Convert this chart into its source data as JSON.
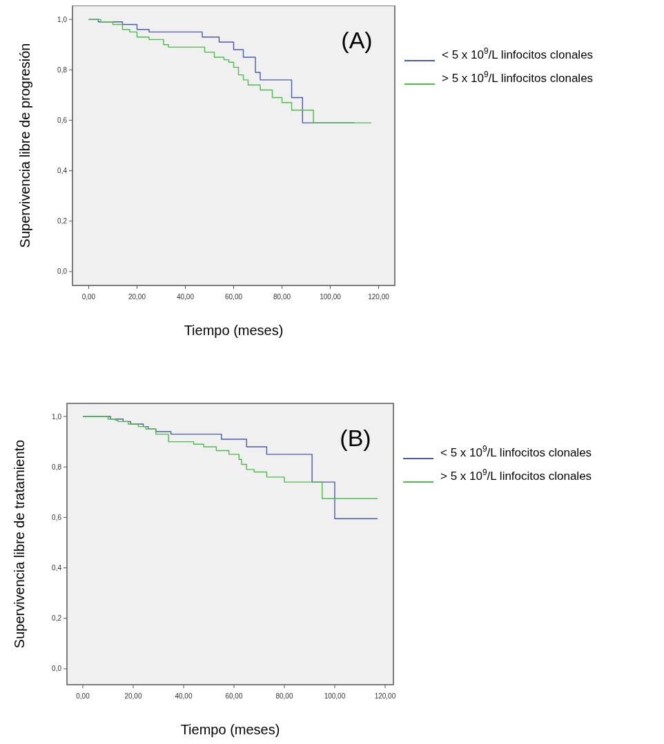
{
  "chart_data": [
    {
      "type": "step",
      "title": "(A)",
      "xlabel": "Tiempo (meses)",
      "ylabel": "Supervivencia libre de progresión",
      "legend": "right",
      "grid": false,
      "xlim": [
        -6.7,
        126.7
      ],
      "ylim": [
        -0.055,
        1.055
      ],
      "xticks": [
        {
          "value": 0,
          "label": "0,00"
        },
        {
          "value": 20,
          "label": "20,00"
        },
        {
          "value": 40,
          "label": "40,00"
        },
        {
          "value": 60,
          "label": "60,00"
        },
        {
          "value": 80,
          "label": "80,00"
        },
        {
          "value": 100,
          "label": "100,00"
        },
        {
          "value": 120,
          "label": "120,00"
        }
      ],
      "yticks": [
        {
          "value": 0,
          "label": "0,0"
        },
        {
          "value": 0.2,
          "label": "0,2"
        },
        {
          "value": 0.4,
          "label": "0,4"
        },
        {
          "value": 0.6,
          "label": "0,6"
        },
        {
          "value": 0.8,
          "label": "0,8"
        },
        {
          "value": 1,
          "label": "1,0"
        }
      ],
      "series": [
        {
          "name": "< 5 x 10$^{9}$/L linfocitos clonales",
          "color": "#4a5aa8",
          "x": [
            0,
            4,
            14,
            20,
            25,
            47,
            54,
            60,
            64,
            69,
            71,
            84,
            88.5,
            110
          ],
          "values": [
            1,
            0.99,
            0.98,
            0.96,
            0.95,
            0.93,
            0.91,
            0.88,
            0.85,
            0.79,
            0.76,
            0.69,
            0.59,
            0.59
          ]
        },
        {
          "name": "> 5 x 10$^{9}$/L linfocitos clonales",
          "color": "#4cbb4c",
          "x": [
            0,
            5,
            10,
            14,
            17,
            20,
            25,
            31,
            33,
            48,
            52,
            56,
            58,
            60,
            62,
            64,
            66,
            71,
            76,
            80,
            84,
            93,
            117
          ],
          "values": [
            1,
            0.99,
            0.98,
            0.96,
            0.95,
            0.93,
            0.92,
            0.9,
            0.89,
            0.87,
            0.85,
            0.84,
            0.83,
            0.81,
            0.78,
            0.76,
            0.74,
            0.72,
            0.69,
            0.67,
            0.64,
            0.59,
            0.59
          ]
        }
      ]
    },
    {
      "type": "step",
      "title": "(B)",
      "xlabel": "Tiempo (meses)",
      "ylabel": "Supervivencia libre de tratamiento",
      "legend": "right",
      "grid": false,
      "xlim": [
        -6.3,
        123.3
      ],
      "ylim": [
        -0.063,
        1.052
      ],
      "xticks": [
        {
          "value": 0,
          "label": "0,00"
        },
        {
          "value": 20,
          "label": "20,00"
        },
        {
          "value": 40,
          "label": "40,00"
        },
        {
          "value": 60,
          "label": "60,00"
        },
        {
          "value": 80,
          "label": "80,00"
        },
        {
          "value": 100,
          "label": "100,00"
        },
        {
          "value": 120,
          "label": "120,00"
        }
      ],
      "yticks": [
        {
          "value": 0,
          "label": "0,0"
        },
        {
          "value": 0.2,
          "label": "0,2"
        },
        {
          "value": 0.4,
          "label": "0,4"
        },
        {
          "value": 0.6,
          "label": "0,6"
        },
        {
          "value": 0.8,
          "label": "0,8"
        },
        {
          "value": 1,
          "label": "1,0"
        }
      ],
      "series": [
        {
          "name": "< 5 x 10$^{9}$/L linfocitos clonales",
          "color": "#4a5aa8",
          "x": [
            0,
            11,
            16,
            19,
            24,
            26,
            29,
            35,
            55,
            65,
            73,
            91,
            100,
            117
          ],
          "values": [
            1,
            0.99,
            0.98,
            0.97,
            0.96,
            0.95,
            0.94,
            0.93,
            0.91,
            0.88,
            0.85,
            0.74,
            0.595,
            0.595
          ]
        },
        {
          "name": "> 5 x 10$^{9}$/L linfocitos clonales",
          "color": "#4cbb4c",
          "x": [
            0,
            10,
            13,
            14,
            18,
            22,
            25,
            29,
            34,
            44,
            48,
            53,
            58,
            62,
            63,
            65,
            68,
            73,
            80,
            95,
            117
          ],
          "values": [
            1,
            0.99,
            0.985,
            0.98,
            0.97,
            0.96,
            0.95,
            0.93,
            0.9,
            0.89,
            0.88,
            0.865,
            0.85,
            0.83,
            0.81,
            0.79,
            0.78,
            0.76,
            0.74,
            0.675,
            0.675
          ]
        }
      ]
    }
  ]
}
